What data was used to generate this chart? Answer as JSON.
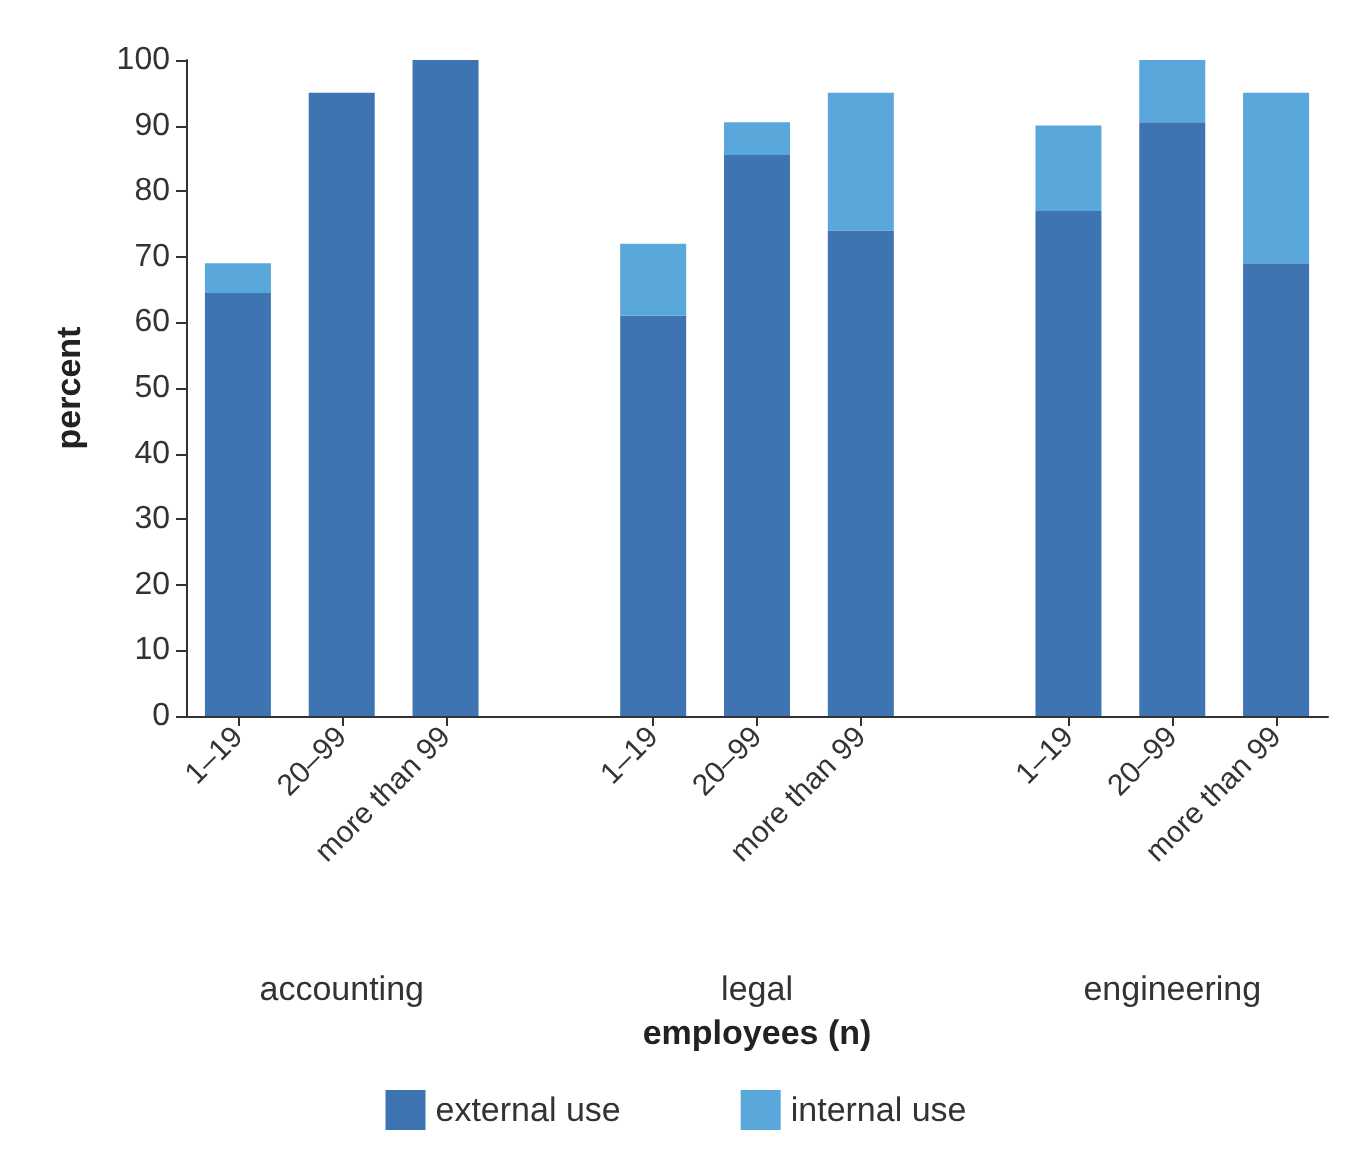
{
  "chart_data": {
    "type": "bar",
    "stacked": true,
    "xlabel": "employees (n)",
    "ylabel": "percent",
    "categories": [
      "1–19",
      "20–99",
      "more than 99",
      null,
      "1–19",
      "20–99",
      "more than 99",
      null,
      "1–19",
      "20–99",
      "more than 99"
    ],
    "series": [
      {
        "name": "external use",
        "color": "#3f74b3",
        "values": [
          64.5,
          95,
          100,
          null,
          61,
          85.5,
          74,
          null,
          77,
          90.5,
          69
        ]
      },
      {
        "name": "internal use",
        "color": "#5aa7dc",
        "values": [
          4.5,
          0,
          0,
          null,
          11,
          5,
          21,
          null,
          13,
          9.5,
          26
        ]
      }
    ],
    "annotations": [
      "accounting",
      "legal",
      "engineering"
    ],
    "ylim": [
      0,
      100
    ],
    "yticks": [
      0,
      10,
      20,
      30,
      40,
      50,
      60,
      70,
      80,
      90,
      100
    ],
    "grid": false,
    "legend": "bottom"
  }
}
